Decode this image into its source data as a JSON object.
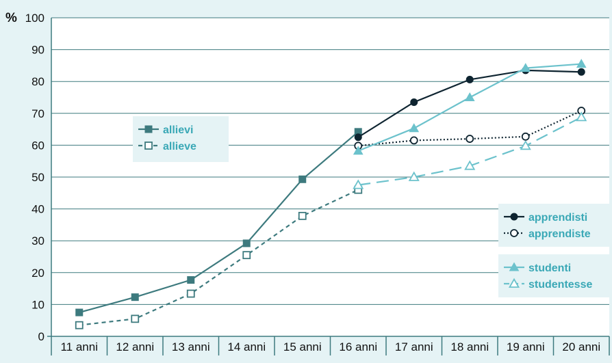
{
  "chart_data": {
    "type": "line",
    "title": "",
    "xlabel": "",
    "ylabel": "%",
    "ylim": [
      0,
      100
    ],
    "yticks": [
      0,
      10,
      20,
      30,
      40,
      50,
      60,
      70,
      80,
      90,
      100
    ],
    "categories": [
      "11 anni",
      "12 anni",
      "13 anni",
      "14 anni",
      "15 anni",
      "16 anni",
      "17 anni",
      "18 anni",
      "19 anni",
      "20 anni"
    ],
    "grid": "horizontal",
    "series": [
      {
        "name": "allievi",
        "color": "#3d7a7e",
        "style": "solid",
        "marker": "square-filled",
        "values": [
          7.5,
          12.3,
          17.7,
          29.2,
          49.3,
          64.2,
          null,
          null,
          null,
          null
        ]
      },
      {
        "name": "allieve",
        "color": "#3d7a7e",
        "style": "dashed",
        "marker": "square-open",
        "values": [
          3.5,
          5.5,
          13.4,
          25.5,
          37.8,
          46.0,
          null,
          null,
          null,
          null
        ]
      },
      {
        "name": "apprendisti",
        "color": "#0e2430",
        "style": "solid",
        "marker": "circle-filled",
        "values": [
          null,
          null,
          null,
          null,
          null,
          62.5,
          73.5,
          80.6,
          83.5,
          83.0
        ]
      },
      {
        "name": "apprendiste",
        "color": "#0e2430",
        "style": "dotted",
        "marker": "circle-open",
        "values": [
          null,
          null,
          null,
          null,
          null,
          59.8,
          61.5,
          62.0,
          62.7,
          70.8
        ]
      },
      {
        "name": "studenti",
        "color": "#6cc2cc",
        "style": "solid",
        "marker": "triangle-filled",
        "values": [
          null,
          null,
          null,
          null,
          null,
          58.2,
          65.3,
          75.0,
          84.2,
          85.5
        ]
      },
      {
        "name": "studentesse",
        "color": "#6cc2cc",
        "style": "longdash",
        "marker": "triangle-open",
        "values": [
          null,
          null,
          null,
          null,
          null,
          47.5,
          50.0,
          53.5,
          59.8,
          68.8
        ]
      }
    ],
    "legends": [
      {
        "placement": "middle-left",
        "series": [
          "allievi",
          "allieve"
        ]
      },
      {
        "placement": "right",
        "series": [
          "apprendisti",
          "apprendiste"
        ]
      },
      {
        "placement": "bottom-right",
        "series": [
          "studenti",
          "studentesse"
        ]
      }
    ]
  }
}
